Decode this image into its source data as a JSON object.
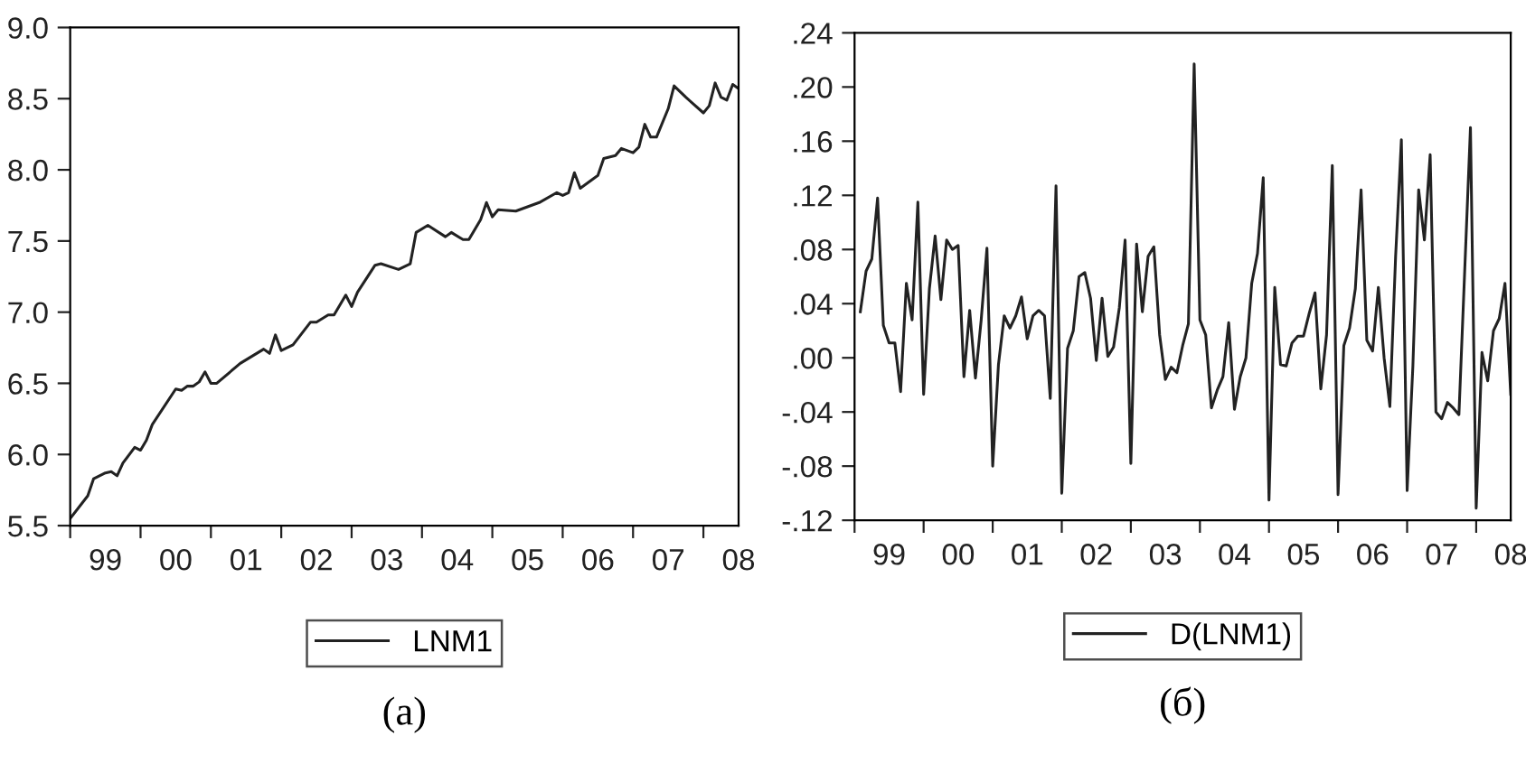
{
  "chart_data": [
    {
      "type": "line",
      "x": [
        "1999-01",
        "1999-04",
        "1999-05",
        "1999-07",
        "1999-08",
        "1999-09",
        "1999-10",
        "1999-12",
        "2000-01",
        "2000-02",
        "2000-03",
        "2000-07",
        "2000-08",
        "2000-09",
        "2000-10",
        "2000-11",
        "2000-12",
        "2001-01",
        "2001-02",
        "2001-06",
        "2001-10",
        "2001-11",
        "2001-12",
        "2002-01",
        "2002-03",
        "2002-06",
        "2002-07",
        "2002-09",
        "2002-10",
        "2002-12",
        "2003-01",
        "2003-02",
        "2003-05",
        "2003-06",
        "2003-09",
        "2003-11",
        "2003-12",
        "2004-02",
        "2004-05",
        "2004-06",
        "2004-08",
        "2004-09",
        "2004-11",
        "2004-12",
        "2005-01",
        "2005-02",
        "2005-05",
        "2005-09",
        "2005-12",
        "2006-01",
        "2006-02",
        "2006-03",
        "2006-04",
        "2006-07",
        "2006-08",
        "2006-10",
        "2006-11",
        "2007-01",
        "2007-02",
        "2007-03",
        "2007-04",
        "2007-05",
        "2007-07",
        "2007-08",
        "2007-10",
        "2008-01",
        "2008-02",
        "2008-03",
        "2008-04",
        "2008-05",
        "2008-06",
        "2008-07"
      ],
      "series": [
        {
          "name": "LNM1",
          "color": "#222222",
          "values": [
            5.55,
            5.71,
            5.83,
            5.87,
            5.88,
            5.85,
            5.94,
            6.05,
            6.03,
            6.1,
            6.21,
            6.46,
            6.45,
            6.48,
            6.48,
            6.51,
            6.58,
            6.5,
            6.5,
            6.64,
            6.74,
            6.71,
            6.84,
            6.73,
            6.77,
            6.93,
            6.93,
            6.98,
            6.98,
            7.12,
            7.04,
            7.14,
            7.33,
            7.34,
            7.3,
            7.34,
            7.56,
            7.61,
            7.53,
            7.56,
            7.51,
            7.51,
            7.65,
            7.77,
            7.67,
            7.72,
            7.71,
            7.77,
            7.84,
            7.82,
            7.84,
            7.98,
            7.87,
            7.96,
            8.08,
            8.1,
            8.15,
            8.12,
            8.16,
            8.32,
            8.23,
            8.23,
            8.43,
            8.59,
            8.51,
            8.4,
            8.45,
            8.61,
            8.51,
            8.49,
            8.6,
            8.57
          ]
        }
      ],
      "xlim": [
        "1999-01",
        "2008-07"
      ],
      "xticks": [
        {
          "value": "1999-01",
          "label": null
        },
        {
          "value": "1999-07",
          "label": "99"
        },
        {
          "value": "2000-01",
          "label": null
        },
        {
          "value": "2000-07",
          "label": "00"
        },
        {
          "value": "2001-01",
          "label": null
        },
        {
          "value": "2001-07",
          "label": "01"
        },
        {
          "value": "2002-01",
          "label": null
        },
        {
          "value": "2002-07",
          "label": "02"
        },
        {
          "value": "2003-01",
          "label": null
        },
        {
          "value": "2003-07",
          "label": "03"
        },
        {
          "value": "2004-01",
          "label": null
        },
        {
          "value": "2004-07",
          "label": "04"
        },
        {
          "value": "2005-01",
          "label": null
        },
        {
          "value": "2005-07",
          "label": "05"
        },
        {
          "value": "2006-01",
          "label": null
        },
        {
          "value": "2006-07",
          "label": "06"
        },
        {
          "value": "2007-01",
          "label": null
        },
        {
          "value": "2007-07",
          "label": "07"
        },
        {
          "value": "2008-01",
          "label": null
        },
        {
          "value": "2008-07",
          "label": "08"
        }
      ],
      "ylim": [
        5.5,
        9.0
      ],
      "yticks": [
        {
          "value": 5.5,
          "label": "5.5"
        },
        {
          "value": 6.0,
          "label": "6.0"
        },
        {
          "value": 6.5,
          "label": "6.5"
        },
        {
          "value": 7.0,
          "label": "7.0"
        },
        {
          "value": 7.5,
          "label": "7.5"
        },
        {
          "value": 8.0,
          "label": "8.0"
        },
        {
          "value": 8.5,
          "label": "8.5"
        },
        {
          "value": 9.0,
          "label": "9.0"
        }
      ],
      "legend": "bottom",
      "annotations": [
        "(a)"
      ]
    },
    {
      "type": "line",
      "x": [
        "1999-02",
        "1999-03",
        "1999-04",
        "1999-05",
        "1999-06",
        "1999-07",
        "1999-08",
        "1999-09",
        "1999-10",
        "1999-11",
        "1999-12",
        "2000-01",
        "2000-02",
        "2000-03",
        "2000-04",
        "2000-05",
        "2000-06",
        "2000-07",
        "2000-08",
        "2000-09",
        "2000-10",
        "2000-11",
        "2000-12",
        "2001-01",
        "2001-02",
        "2001-03",
        "2001-04",
        "2001-05",
        "2001-06",
        "2001-07",
        "2001-08",
        "2001-09",
        "2001-10",
        "2001-11",
        "2001-12",
        "2002-01",
        "2002-02",
        "2002-03",
        "2002-04",
        "2002-05",
        "2002-06",
        "2002-07",
        "2002-08",
        "2002-09",
        "2002-10",
        "2002-11",
        "2002-12",
        "2003-01",
        "2003-02",
        "2003-03",
        "2003-04",
        "2003-05",
        "2003-06",
        "2003-07",
        "2003-08",
        "2003-09",
        "2003-10",
        "2003-11",
        "2003-12",
        "2004-01",
        "2004-02",
        "2004-03",
        "2004-04",
        "2004-05",
        "2004-06",
        "2004-07",
        "2004-08",
        "2004-09",
        "2004-10",
        "2004-11",
        "2004-12",
        "2005-01",
        "2005-02",
        "2005-03",
        "2005-04",
        "2005-05",
        "2005-06",
        "2005-07",
        "2005-08",
        "2005-09",
        "2005-10",
        "2005-11",
        "2005-12",
        "2006-01",
        "2006-02",
        "2006-03",
        "2006-04",
        "2006-05",
        "2006-06",
        "2006-07",
        "2006-08",
        "2006-09",
        "2006-10",
        "2006-11",
        "2006-12",
        "2007-01",
        "2007-02",
        "2007-03",
        "2007-04",
        "2007-05",
        "2007-06",
        "2007-07",
        "2007-08",
        "2007-09",
        "2007-10",
        "2007-11",
        "2007-12",
        "2008-01",
        "2008-02",
        "2008-03",
        "2008-04",
        "2008-05",
        "2008-06",
        "2008-07"
      ],
      "series": [
        {
          "name": "D(LNM1)",
          "color": "#222222",
          "values": [
            0.034,
            0.064,
            0.073,
            0.118,
            0.024,
            0.011,
            0.011,
            -0.025,
            0.055,
            0.028,
            0.115,
            -0.027,
            0.051,
            0.09,
            0.043,
            0.087,
            0.08,
            0.083,
            -0.014,
            0.035,
            -0.015,
            0.028,
            0.081,
            -0.08,
            -0.005,
            0.031,
            0.022,
            0.031,
            0.045,
            0.014,
            0.031,
            0.035,
            0.031,
            -0.03,
            0.127,
            -0.1,
            0.007,
            0.02,
            0.06,
            0.063,
            0.044,
            -0.002,
            0.044,
            0.001,
            0.008,
            0.037,
            0.087,
            -0.078,
            0.084,
            0.034,
            0.075,
            0.082,
            0.017,
            -0.016,
            -0.007,
            -0.011,
            0.009,
            0.025,
            0.217,
            0.028,
            0.017,
            -0.037,
            -0.024,
            -0.014,
            0.026,
            -0.038,
            -0.014,
            0.0,
            0.055,
            0.077,
            0.133,
            -0.105,
            0.052,
            -0.005,
            -0.006,
            0.011,
            0.016,
            0.016,
            0.033,
            0.048,
            -0.023,
            0.017,
            0.142,
            -0.101,
            0.009,
            0.022,
            0.051,
            0.124,
            0.013,
            0.005,
            0.052,
            0.0,
            -0.036,
            0.075,
            0.161,
            -0.098,
            -0.006,
            0.124,
            0.087,
            0.15,
            -0.04,
            -0.045,
            -0.033,
            -0.037,
            -0.042,
            0.064,
            0.17,
            -0.111,
            0.004,
            -0.017,
            0.02,
            0.029,
            0.055,
            -0.027
          ]
        }
      ],
      "xlim": [
        "1999-01",
        "2008-07"
      ],
      "xticks": [
        {
          "value": "1999-01",
          "label": null
        },
        {
          "value": "1999-07",
          "label": "99"
        },
        {
          "value": "2000-01",
          "label": null
        },
        {
          "value": "2000-07",
          "label": "00"
        },
        {
          "value": "2001-01",
          "label": null
        },
        {
          "value": "2001-07",
          "label": "01"
        },
        {
          "value": "2002-01",
          "label": null
        },
        {
          "value": "2002-07",
          "label": "02"
        },
        {
          "value": "2003-01",
          "label": null
        },
        {
          "value": "2003-07",
          "label": "03"
        },
        {
          "value": "2004-01",
          "label": null
        },
        {
          "value": "2004-07",
          "label": "04"
        },
        {
          "value": "2005-01",
          "label": null
        },
        {
          "value": "2005-07",
          "label": "05"
        },
        {
          "value": "2006-01",
          "label": null
        },
        {
          "value": "2006-07",
          "label": "06"
        },
        {
          "value": "2007-01",
          "label": null
        },
        {
          "value": "2007-07",
          "label": "07"
        },
        {
          "value": "2008-01",
          "label": null
        },
        {
          "value": "2008-07",
          "label": "08"
        }
      ],
      "ylim": [
        -0.12,
        0.24
      ],
      "yticks": [
        {
          "value": -0.12,
          "label": "-.12"
        },
        {
          "value": -0.08,
          "label": "-.08"
        },
        {
          "value": -0.04,
          "label": "-.04"
        },
        {
          "value": 0.0,
          "label": ".00"
        },
        {
          "value": 0.04,
          "label": ".04"
        },
        {
          "value": 0.08,
          "label": ".08"
        },
        {
          "value": 0.12,
          "label": ".12"
        },
        {
          "value": 0.16,
          "label": ".16"
        },
        {
          "value": 0.2,
          "label": ".20"
        },
        {
          "value": 0.24,
          "label": ".24"
        }
      ],
      "legend": "bottom",
      "annotations": [
        "(б)"
      ]
    }
  ]
}
